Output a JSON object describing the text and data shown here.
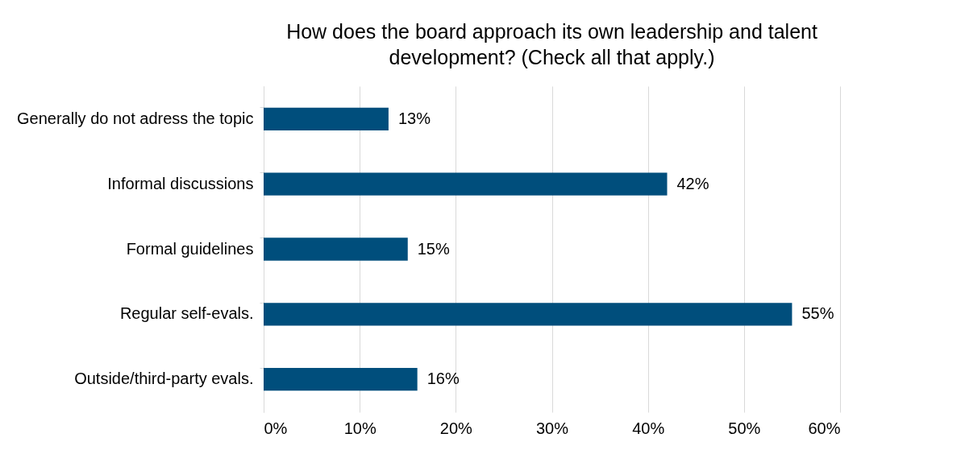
{
  "chart_data": {
    "type": "bar",
    "orientation": "horizontal",
    "title": "How does the board approach its own leadership and talent development? (Check all that apply.)",
    "categories": [
      "Generally do not adress the topic",
      "Informal discussions",
      "Formal guidelines",
      "Regular self-evals.",
      "Outside/third-party evals."
    ],
    "values": [
      13,
      42,
      15,
      55,
      16
    ],
    "value_labels": [
      "13%",
      "42%",
      "15%",
      "55%",
      "16%"
    ],
    "color": "#004e7c",
    "xlim": [
      0,
      60
    ],
    "xticks": [
      {
        "value": 0,
        "label": "0%"
      },
      {
        "value": 10,
        "label": "10%"
      },
      {
        "value": 20,
        "label": "20%"
      },
      {
        "value": 30,
        "label": "30%"
      },
      {
        "value": 40,
        "label": "40%"
      },
      {
        "value": 50,
        "label": "50%"
      },
      {
        "value": 60,
        "label": "60%"
      }
    ],
    "grid": "x"
  }
}
